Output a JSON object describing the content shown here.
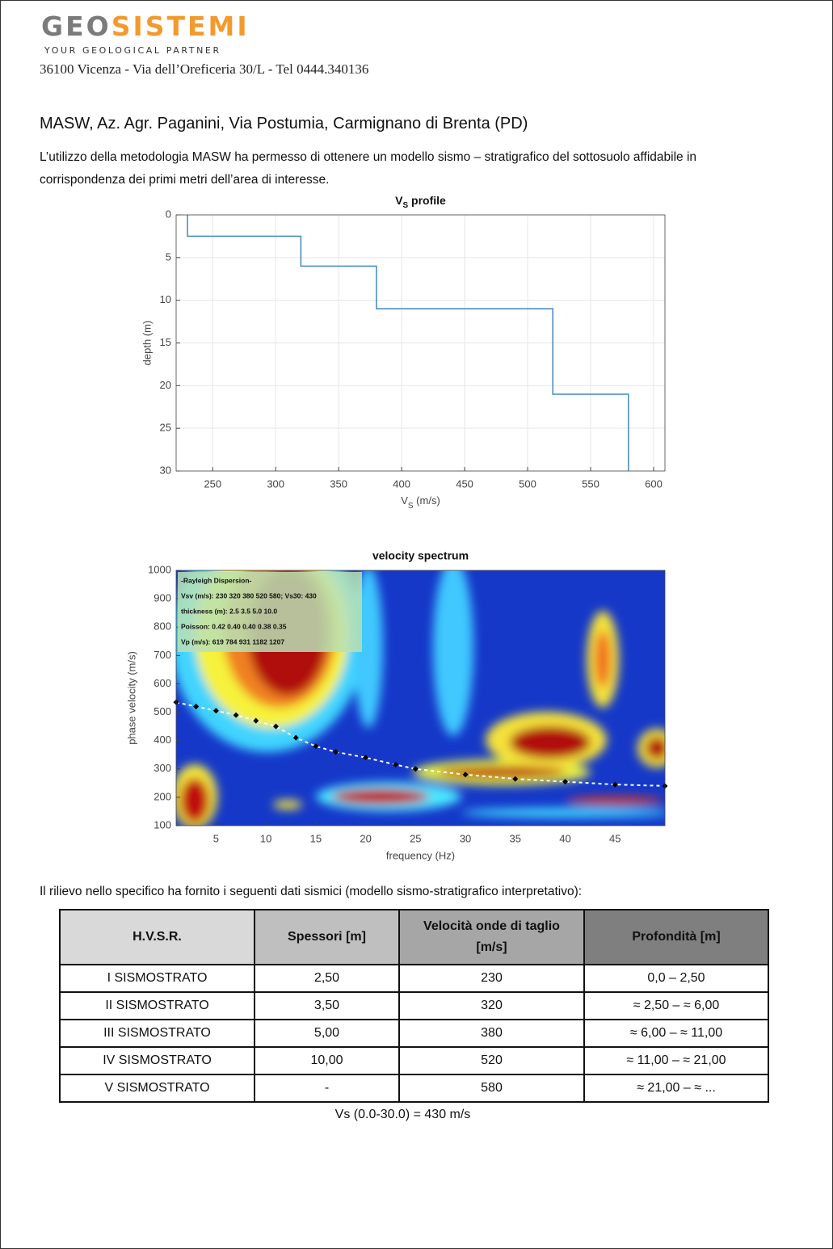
{
  "header": {
    "logo_a": "GEO",
    "logo_b": "SISTEMI",
    "tagline": "YOUR GEOLOGICAL PARTNER",
    "address": "36100 Vicenza - Via dell’Oreficeria 30/L - Tel 0444.340136"
  },
  "heading": "MASW, Az. Agr. Paganini, Via Postumia, Carmignano di Brenta (PD)",
  "intro": "L’utilizzo della metodologia MASW ha permesso di ottenere un modello sismo – stratigrafico del sottosuolo affidabile in corrispondenza dei primi metri dell’area di interesse.",
  "chart_data": [
    {
      "type": "line",
      "title": [
        "V",
        "S",
        " profile"
      ],
      "xlabel": [
        "V",
        "S",
        " (m/s)"
      ],
      "ylabel": "depth (m)",
      "x": [
        230,
        230,
        320,
        320,
        380,
        380,
        520,
        520,
        580,
        580
      ],
      "y": [
        0,
        2.5,
        2.5,
        6,
        6,
        11,
        11,
        21,
        21,
        30
      ],
      "color": "#4a8ec8",
      "xlim": [
        221,
        609
      ],
      "ylim": [
        0,
        30
      ],
      "y_reversed": true,
      "xticks": [
        250,
        300,
        350,
        400,
        450,
        500,
        550,
        600
      ],
      "yticks": [
        0,
        5,
        10,
        15,
        20,
        25,
        30
      ],
      "grid": true
    },
    {
      "type": "scatter",
      "title": "velocity spectrum",
      "xlabel": "frequency (Hz)",
      "ylabel": "phase velocity (m/s)",
      "x": [
        1,
        3,
        5,
        7,
        9,
        11,
        13,
        15,
        17,
        20,
        23,
        25,
        30,
        35,
        40,
        45,
        50
      ],
      "y": [
        535,
        520,
        505,
        490,
        470,
        450,
        410,
        380,
        360,
        340,
        315,
        300,
        280,
        265,
        255,
        245,
        240
      ],
      "color": "#000000",
      "xlim": [
        1,
        50
      ],
      "ylim": [
        100,
        1000
      ],
      "xticks": [
        5,
        10,
        15,
        20,
        25,
        30,
        35,
        40,
        45
      ],
      "yticks": [
        100,
        200,
        300,
        400,
        500,
        600,
        700,
        800,
        900,
        1000
      ],
      "grid": false,
      "annotations": [
        "-Rayleigh Dispersion-",
        "Vsv (m/s): 230  320  380  520  580; Vs30: 430",
        "thickness (m): 2.5   3.5   5.0   10.0",
        "Poisson: 0.42  0.40  0.40  0.38  0.35",
        "Vp (m/s): 619  784  931 1182 1207"
      ]
    }
  ],
  "table_intro": "Il rilievo nello specifico ha fornito i seguenti dati sismici (modello sismo-stratigrafico interpretativo):",
  "table": {
    "header": [
      "H.V.S.R.",
      "Spessori [m]",
      "Velocità onde di taglio [m/s]",
      "Profondità [m]"
    ],
    "rows": [
      [
        "I SISMOSTRATO",
        "2,50",
        "230",
        "0,0 – 2,50"
      ],
      [
        "II SISMOSTRATO",
        "3,50",
        "320",
        "≈ 2,50 – ≈ 6,00"
      ],
      [
        "III SISMOSTRATO",
        "5,00",
        "380",
        "≈ 6,00 – ≈ 11,00"
      ],
      [
        "IV SISMOSTRATO",
        "10,00",
        "520",
        "≈ 11,00 – ≈ 21,00"
      ],
      [
        "V SISMOSTRATO",
        "-",
        "580",
        "≈ 21,00 – ≈ ..."
      ]
    ]
  },
  "footer_note": "Vs (0.0-30.0) = 430 m/s"
}
